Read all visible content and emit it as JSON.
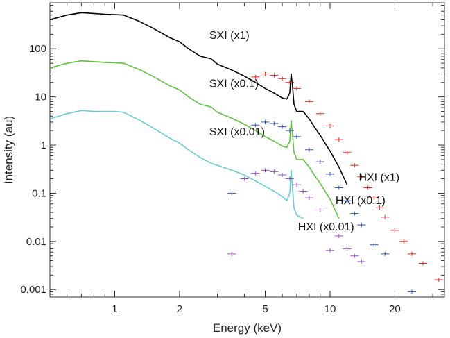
{
  "chart_data": {
    "type": "line",
    "xlabel": "Energy (keV)",
    "ylabel": "Intensity (au)",
    "xscale": "log",
    "yscale": "log",
    "xlim": [
      0.5,
      34
    ],
    "ylim": [
      0.0007,
      900
    ],
    "x_ticks": [
      {
        "value": 1,
        "label": "1"
      },
      {
        "value": 2,
        "label": "2"
      },
      {
        "value": 5,
        "label": "5"
      },
      {
        "value": 10,
        "label": "10"
      },
      {
        "value": 20,
        "label": "20"
      }
    ],
    "y_ticks": [
      {
        "value": 0.001,
        "label": "0.001"
      },
      {
        "value": 0.01,
        "label": "0.01"
      },
      {
        "value": 0.1,
        "label": "0.1"
      },
      {
        "value": 1,
        "label": "1"
      },
      {
        "value": 10,
        "label": "10"
      },
      {
        "value": 100,
        "label": "100"
      }
    ],
    "series": [
      {
        "name": "SXI (x1)",
        "kind": "line",
        "color": "#000000",
        "x": [
          0.5,
          0.6,
          0.7,
          0.8,
          0.9,
          1.0,
          1.1,
          1.3,
          1.5,
          1.8,
          2.0,
          2.2,
          2.5,
          2.8,
          3.0,
          3.5,
          4.0,
          4.5,
          5.0,
          5.5,
          6.0,
          6.3,
          6.5,
          6.6,
          6.7,
          6.8,
          7.0,
          7.5,
          8.0,
          8.5,
          9.0,
          10.0,
          11.0,
          12.0
        ],
        "y": [
          400,
          500,
          560,
          540,
          520,
          510,
          500,
          370,
          270,
          170,
          140,
          100,
          70,
          62,
          48,
          36,
          27,
          20,
          15,
          12,
          9.5,
          9.0,
          12,
          30,
          16,
          7,
          5.0,
          5.0,
          3.5,
          2.3,
          1.6,
          0.75,
          0.35,
          0.15
        ]
      },
      {
        "name": "SXI (x0.1)",
        "kind": "line",
        "color": "#5ec23c",
        "x": [
          0.5,
          0.6,
          0.7,
          0.8,
          0.9,
          1.0,
          1.1,
          1.3,
          1.5,
          1.8,
          2.0,
          2.2,
          2.5,
          2.8,
          3.0,
          3.5,
          4.0,
          4.5,
          5.0,
          5.5,
          6.0,
          6.3,
          6.5,
          6.6,
          6.7,
          6.8,
          7.0,
          7.5,
          8.0,
          8.5,
          9.0,
          10.0,
          11.0
        ],
        "y": [
          40,
          50,
          56,
          54,
          52,
          51,
          50,
          37,
          27,
          17,
          14,
          10,
          7,
          6.2,
          4.8,
          3.6,
          2.7,
          2.0,
          1.5,
          1.2,
          0.95,
          0.9,
          1.2,
          3.2,
          1.6,
          0.7,
          0.5,
          0.5,
          0.35,
          0.23,
          0.16,
          0.075,
          0.03
        ]
      },
      {
        "name": "SXI (x0.01)",
        "kind": "line",
        "color": "#6acbd8",
        "x": [
          0.5,
          0.6,
          0.7,
          0.8,
          0.9,
          1.0,
          1.1,
          1.3,
          1.5,
          1.8,
          2.0,
          2.2,
          2.5,
          2.8,
          3.0,
          3.5,
          4.0,
          4.5,
          5.0,
          5.5,
          6.0,
          6.3,
          6.5,
          6.6,
          6.7,
          6.8,
          7.0,
          7.5
        ],
        "y": [
          3.5,
          4.5,
          5.2,
          5.0,
          5.0,
          5.0,
          4.8,
          3.3,
          2.3,
          1.4,
          1.1,
          0.8,
          0.55,
          0.42,
          0.38,
          0.3,
          0.24,
          0.18,
          0.14,
          0.11,
          0.085,
          0.07,
          0.1,
          0.3,
          0.12,
          0.05,
          0.035,
          0.03
        ]
      },
      {
        "name": "HXI (x1)",
        "kind": "points",
        "color": "#e8261f",
        "x": [
          4.5,
          5.0,
          5.5,
          6.0,
          6.5,
          7.0,
          8.0,
          9.0,
          10.0,
          11.0,
          12.0,
          13.0,
          14.0,
          15.0,
          16.0,
          17.0,
          18.0,
          20.0,
          22.0,
          24.0,
          27.0,
          32.0
        ],
        "y": [
          26,
          30,
          28,
          24,
          20,
          15,
          8.0,
          4.5,
          2.5,
          1.3,
          0.7,
          0.38,
          0.22,
          0.13,
          0.08,
          0.05,
          0.032,
          0.017,
          0.01,
          0.0055,
          0.0035,
          0.0016
        ]
      },
      {
        "name": "HXI (x0.1)",
        "kind": "points",
        "color": "#2a55b8",
        "x": [
          3.5,
          4.5,
          5.0,
          5.5,
          6.0,
          6.5,
          7.0,
          8.0,
          9.0,
          10.0,
          11.0,
          12.0,
          13.0,
          14.0,
          16.0,
          18.0,
          24.0
        ],
        "y": [
          0.1,
          2.6,
          3.0,
          2.8,
          2.4,
          2.0,
          1.5,
          0.8,
          0.45,
          0.25,
          0.13,
          0.07,
          0.038,
          0.022,
          0.0085,
          0.0055,
          0.0009
        ]
      },
      {
        "name": "HXI (x0.01)",
        "kind": "points",
        "color": "#9a4cc0",
        "x": [
          3.5,
          4.0,
          4.5,
          5.0,
          5.5,
          6.0,
          6.5,
          7.0,
          7.5,
          8.0,
          9.0,
          10.0,
          11.0,
          12.0,
          13.0,
          14.0
        ],
        "y": [
          0.0055,
          0.2,
          0.26,
          0.3,
          0.28,
          0.24,
          0.2,
          0.15,
          0.11,
          0.08,
          0.045,
          0.0065,
          0.013,
          0.007,
          0.005,
          0.0038
        ]
      }
    ],
    "annotations": [
      {
        "text": "SXI (x1)",
        "x": 2.75,
        "y": 160,
        "color": "#111111"
      },
      {
        "text": "SXI (x0.1)",
        "x": 2.75,
        "y": 16,
        "color": "#111111"
      },
      {
        "text": "SXI (x0.01)",
        "x": 2.75,
        "y": 1.6,
        "color": "#111111"
      },
      {
        "text": "HXI (x1)",
        "x": 13.6,
        "y": 0.18,
        "color": "#111111"
      },
      {
        "text": "HXI (x0.1)",
        "x": 10.6,
        "y": 0.06,
        "color": "#111111"
      },
      {
        "text": "HXI (x0.01)",
        "x": 7.1,
        "y": 0.017,
        "color": "#111111"
      }
    ],
    "grid": false
  }
}
